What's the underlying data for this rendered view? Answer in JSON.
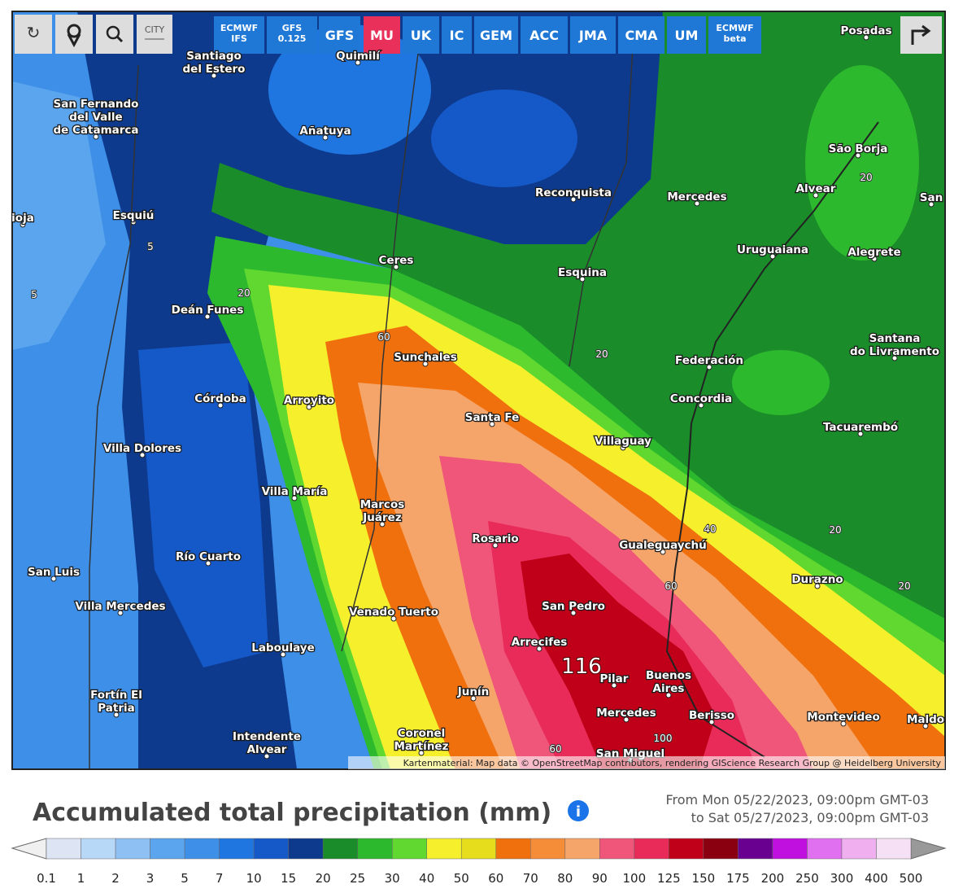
{
  "toolbar": {
    "city_icon": "CITY",
    "models": [
      [
        "ECMWF",
        "IFS"
      ],
      [
        "GFS",
        "0.125"
      ],
      [
        "GFS"
      ],
      [
        "MU"
      ],
      [
        "UK"
      ],
      [
        "IC"
      ],
      [
        "GEM"
      ],
      [
        "ACC"
      ],
      [
        "JMA"
      ],
      [
        "CMA"
      ],
      [
        "UM"
      ],
      [
        "ECMWF",
        "beta"
      ]
    ],
    "active": 3
  },
  "map": {
    "places": [
      [
        "Santiago",
        "del Estero"
      ],
      [
        "Quimilí"
      ],
      [
        "Posadas"
      ],
      [
        "San Fernando",
        "del Valle",
        "de Catamarca"
      ],
      [
        "Añatuya"
      ],
      [
        "São Borja"
      ],
      [
        "Reconquista"
      ],
      [
        "Mercedes"
      ],
      [
        "Alvear"
      ],
      [
        "San"
      ],
      [
        "ioja"
      ],
      [
        "Esquiú"
      ],
      [
        "Uruguaiana"
      ],
      [
        "Alegrete"
      ],
      [
        "Ceres"
      ],
      [
        "Esquina"
      ],
      [
        "Deán Funes"
      ],
      [
        "Santana",
        "do Livramento"
      ],
      [
        "Federación"
      ],
      [
        "Sunchales"
      ],
      [
        "Concordia"
      ],
      [
        "Córdoba"
      ],
      [
        "Arroyito"
      ],
      [
        "Santa Fe"
      ],
      [
        "Tacuarembó"
      ],
      [
        "Villaguay"
      ],
      [
        "Villa Dolores"
      ],
      [
        "Villa María"
      ],
      [
        "Marcos",
        "Juárez"
      ],
      [
        "Rosario"
      ],
      [
        "Gualeguaychú"
      ],
      [
        "San Luis"
      ],
      [
        "Río Cuarto"
      ],
      [
        "Durazno"
      ],
      [
        "Villa Mercedes"
      ],
      [
        "San Pedro"
      ],
      [
        "Venado Tuerto"
      ],
      [
        "Arrecifes"
      ],
      [
        "Laboulaye"
      ],
      [
        "Pilar"
      ],
      [
        "Buenos",
        "Aires"
      ],
      [
        "Fortín El",
        "Patria"
      ],
      [
        "Junín"
      ],
      [
        "Mercedes"
      ],
      [
        "Berisso"
      ],
      [
        "Montevideo"
      ],
      [
        "Maldo"
      ],
      [
        "Intendente",
        "Alvear"
      ],
      [
        "Coronel",
        "Martínez"
      ],
      [
        "San Miguel"
      ]
    ],
    "contour_labels": [
      5,
      5,
      20,
      60,
      20,
      20,
      40,
      20,
      20,
      60,
      60,
      100
    ],
    "max_value": 116,
    "attribution": "Kartenmaterial: Map data © OpenStreetMap contributors, rendering GIScience Research Group @ Heidelberg University"
  },
  "footer": {
    "title": "Accumulated total precipitation (mm)",
    "period": [
      "From Mon 05/22/2023, 09:00pm GMT-03",
      "to Sat 05/27/2023, 09:00pm GMT-03"
    ]
  },
  "scale": {
    "values": [
      0.1,
      1,
      2,
      3,
      5,
      7,
      10,
      15,
      20,
      25,
      30,
      40,
      50,
      60,
      70,
      80,
      90,
      100,
      125,
      150,
      175,
      200,
      250,
      300,
      400,
      500
    ],
    "colors": [
      "#dde4f4",
      "#b8d8f8",
      "#8ec0f4",
      "#5ba4ee",
      "#3d8fe8",
      "#2076e0",
      "#1558c8",
      "#0d3a8c",
      "#1a8c2a",
      "#2db92d",
      "#60d830",
      "#f5ef2c",
      "#e6de1c",
      "#f0700e",
      "#f58c38",
      "#f6a56a",
      "#f0557a",
      "#e82b58",
      "#c00018",
      "#8a0010",
      "#6a0090",
      "#c010e0",
      "#e070f0",
      "#f0b0f0",
      "#f5e0f5"
    ]
  }
}
